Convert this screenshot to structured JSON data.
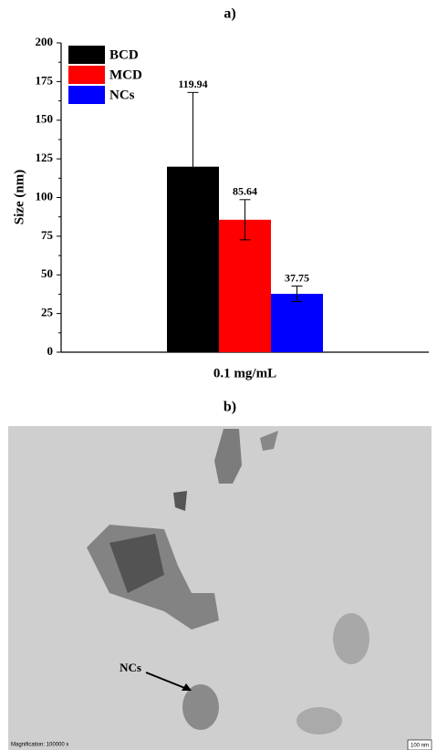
{
  "chart_data": {
    "type": "bar",
    "title": "a)",
    "y_label": "Size (nm)",
    "categories": [
      "0.1 mg/mL"
    ],
    "series": [
      {
        "name": "BCD",
        "color": "#000000",
        "values": [
          119.94
        ],
        "errors": [
          48
        ]
      },
      {
        "name": "MCD",
        "color": "#ff0000",
        "values": [
          85.64
        ],
        "errors": [
          13
        ]
      },
      {
        "name": "NCs",
        "color": "#0000ff",
        "values": [
          37.75
        ],
        "errors": [
          5
        ]
      }
    ],
    "ylim": [
      0,
      200
    ],
    "yticks": [
      0,
      25,
      50,
      75,
      100,
      125,
      150,
      175,
      200
    ],
    "legend": "upper-left"
  },
  "figure_b": {
    "title": "b)",
    "annotation": "NCs",
    "magnification": "Magnification:  100000 x",
    "scale_bar": "100 nm"
  }
}
